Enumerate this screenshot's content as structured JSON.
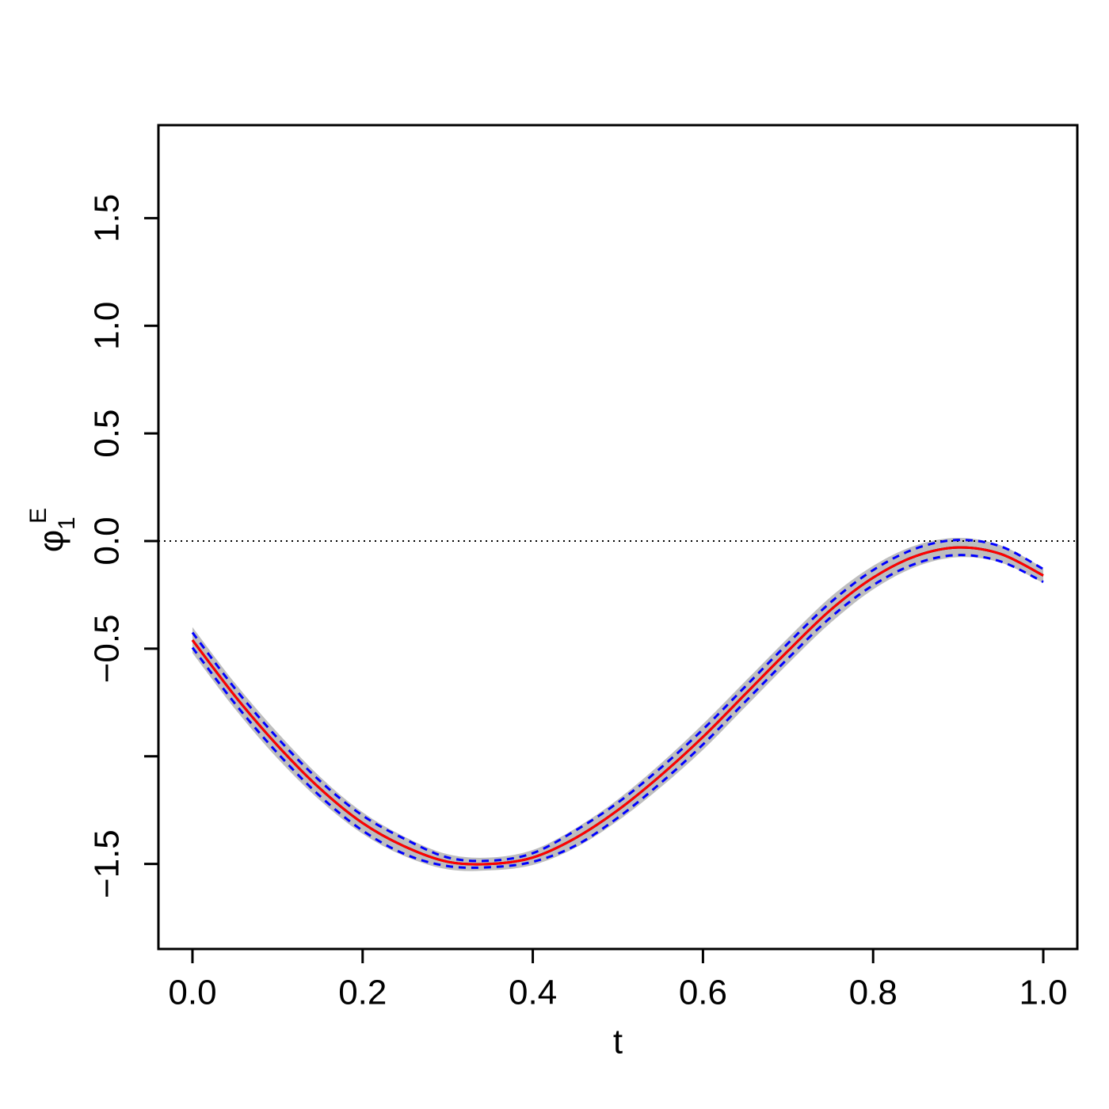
{
  "chart_data": {
    "type": "line",
    "xlabel": "t",
    "ylabel": "φ",
    "ylabel_sup": "E",
    "ylabel_sub": "1",
    "xlim": [
      -0.04,
      1.04
    ],
    "ylim": [
      -1.895,
      1.932
    ],
    "xticks": [
      {
        "value": 0,
        "label": "0.0"
      },
      {
        "value": 0.2,
        "label": "0.2"
      },
      {
        "value": 0.4,
        "label": "0.4"
      },
      {
        "value": 0.6,
        "label": "0.6"
      },
      {
        "value": 0.8,
        "label": "0.8"
      },
      {
        "value": 1,
        "label": "1.0"
      }
    ],
    "yticks": [
      {
        "value": -1.5,
        "label": "−1.5"
      },
      {
        "value": -1,
        "label": null
      },
      {
        "value": -0.5,
        "label": "−0.5"
      },
      {
        "value": 0,
        "label": "0.0"
      },
      {
        "value": 0.5,
        "label": "0.5"
      },
      {
        "value": 1,
        "label": "1.0"
      },
      {
        "value": 1.5,
        "label": "1.5"
      }
    ],
    "hline": 0,
    "x": [
      0,
      0.05,
      0.1,
      0.15,
      0.2,
      0.25,
      0.3,
      0.35,
      0.4,
      0.45,
      0.5,
      0.55,
      0.6,
      0.65,
      0.7,
      0.75,
      0.8,
      0.85,
      0.9,
      0.95,
      1
    ],
    "band": {
      "color": "#bebebe",
      "lower": [
        -0.52,
        -0.78,
        -1.01,
        -1.205,
        -1.36,
        -1.465,
        -1.525,
        -1.53,
        -1.505,
        -1.425,
        -1.3,
        -1.145,
        -0.97,
        -0.77,
        -0.57,
        -0.38,
        -0.225,
        -0.12,
        -0.075,
        -0.1,
        -0.195
      ],
      "upper": [
        -0.4,
        -0.66,
        -0.89,
        -1.095,
        -1.26,
        -1.375,
        -1.455,
        -1.47,
        -1.435,
        -1.335,
        -1.2,
        -1.035,
        -0.85,
        -0.65,
        -0.45,
        -0.26,
        -0.115,
        -0.02,
        0.015,
        -0.02,
        -0.125
      ]
    },
    "series": [
      {
        "color": "#000000",
        "dashed": false,
        "values": [
          -0.46,
          -0.72,
          -0.95,
          -1.15,
          -1.31,
          -1.42,
          -1.49,
          -1.5,
          -1.47,
          -1.38,
          -1.25,
          -1.09,
          -0.91,
          -0.71,
          -0.51,
          -0.32,
          -0.17,
          -0.07,
          -0.03,
          -0.06,
          -0.16
        ]
      },
      {
        "color": "#ff0000",
        "dashed": false,
        "values": [
          -0.46,
          -0.72,
          -0.95,
          -1.15,
          -1.31,
          -1.42,
          -1.49,
          -1.5,
          -1.47,
          -1.38,
          -1.25,
          -1.09,
          -0.91,
          -0.71,
          -0.51,
          -0.32,
          -0.17,
          -0.07,
          -0.03,
          -0.06,
          -0.16
        ]
      },
      {
        "color": "#0000ff",
        "dashed": true,
        "values": [
          -0.495,
          -0.755,
          -0.985,
          -1.185,
          -1.345,
          -1.455,
          -1.51,
          -1.515,
          -1.49,
          -1.415,
          -1.285,
          -1.125,
          -0.945,
          -0.745,
          -0.545,
          -0.355,
          -0.205,
          -0.105,
          -0.065,
          -0.095,
          -0.19
        ]
      },
      {
        "color": "#0000ff",
        "dashed": true,
        "values": [
          -0.425,
          -0.685,
          -0.915,
          -1.115,
          -1.275,
          -1.385,
          -1.47,
          -1.485,
          -1.45,
          -1.345,
          -1.215,
          -1.055,
          -0.875,
          -0.675,
          -0.475,
          -0.285,
          -0.135,
          -0.035,
          0.005,
          -0.025,
          -0.13
        ]
      }
    ]
  }
}
